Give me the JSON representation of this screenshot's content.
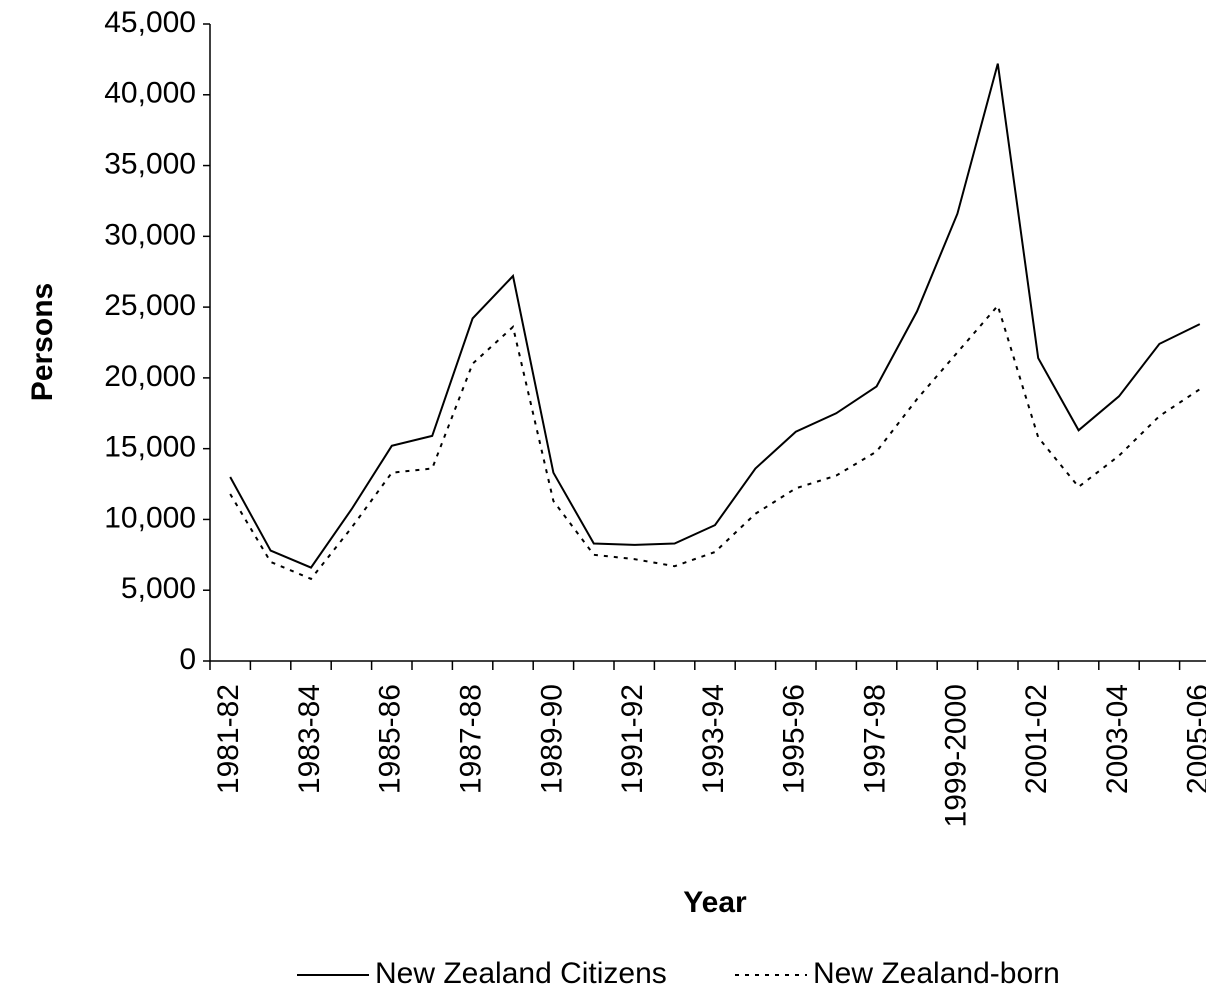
{
  "chart_data": {
    "type": "line",
    "y_label": "Persons",
    "x_label": "Year",
    "categories": [
      "1981-82",
      null,
      "1983-84",
      null,
      "1985-86",
      null,
      "1987-88",
      null,
      "1989-90",
      null,
      "1991-92",
      null,
      "1993-94",
      null,
      "1995-96",
      null,
      "1997-98",
      null,
      "1999-2000",
      null,
      "2001-02",
      null,
      "2003-04",
      null,
      "2005-06"
    ],
    "series": [
      {
        "name": "New Zealand Citizens",
        "color": "#000000",
        "style": "solid",
        "values": [
          13000,
          7800,
          6600,
          10700,
          15200,
          15900,
          24200,
          27200,
          13300,
          8300,
          8200,
          8300,
          9600,
          13600,
          16200,
          17500,
          19400,
          24700,
          31600,
          42200,
          21400,
          16300,
          18700,
          22400,
          23800
        ]
      },
      {
        "name": "New Zealand-born",
        "color": "#000000",
        "style": "dotted",
        "values": [
          11800,
          7000,
          5800,
          9400,
          13300,
          13600,
          21000,
          23600,
          11300,
          7500,
          7200,
          6700,
          7700,
          10400,
          12200,
          13100,
          14800,
          18500,
          21800,
          25100,
          15800,
          12300,
          14500,
          17300,
          19200
        ]
      }
    ],
    "ylim": [
      0,
      45000
    ],
    "yticks": [
      0,
      {
        "value": 5000,
        "label": "5,000"
      },
      {
        "value": 10000,
        "label": "10,000"
      },
      {
        "value": 15000,
        "label": "15,000"
      },
      {
        "value": 20000,
        "label": "20,000"
      },
      {
        "value": 25000,
        "label": "25,000"
      },
      {
        "value": 30000,
        "label": "30,000"
      },
      {
        "value": 35000,
        "label": "35,000"
      },
      {
        "value": 40000,
        "label": "40,000"
      },
      {
        "value": 45000,
        "label": "45,000"
      }
    ],
    "grid": false,
    "legend": "bottom"
  }
}
